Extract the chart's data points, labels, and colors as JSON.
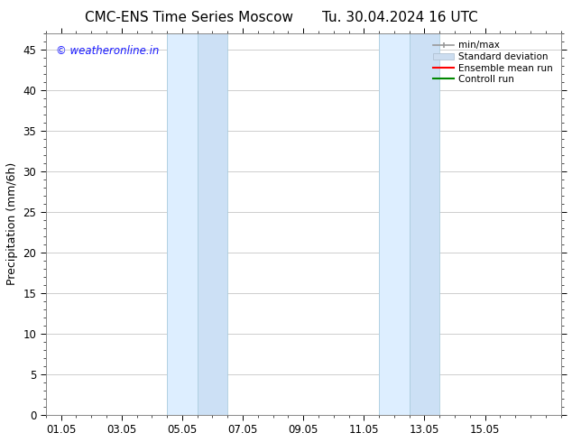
{
  "title_left": "CMC-ENS Time Series Moscow",
  "title_right": "Tu. 30.04.2024 16 UTC",
  "ylabel": "Precipitation (mm/6h)",
  "watermark": "© weatheronline.in",
  "watermark_color": "#1a1aff",
  "ylim": [
    0,
    47
  ],
  "yticks": [
    0,
    5,
    10,
    15,
    20,
    25,
    30,
    35,
    40,
    45
  ],
  "xtick_labels": [
    "01.05",
    "03.05",
    "05.05",
    "07.05",
    "09.05",
    "11.05",
    "13.05",
    "15.05"
  ],
  "xtick_positions": [
    0,
    2,
    4,
    6,
    8,
    10,
    12,
    14
  ],
  "xlim_start": -0.5,
  "xlim_end": 16.5,
  "shaded_bands": [
    {
      "x_start": 3.5,
      "x_end": 4.5,
      "color": "#ddeeff"
    },
    {
      "x_start": 4.5,
      "x_end": 5.5,
      "color": "#cce0f5"
    },
    {
      "x_start": 10.5,
      "x_end": 11.5,
      "color": "#ddeeff"
    },
    {
      "x_start": 11.5,
      "x_end": 12.5,
      "color": "#cce0f5"
    }
  ],
  "bg_color": "#ffffff",
  "plot_bg_color": "#ffffff",
  "grid_color": "#bbbbbb",
  "tick_label_size": 8.5,
  "axis_label_size": 9,
  "title_size": 11
}
